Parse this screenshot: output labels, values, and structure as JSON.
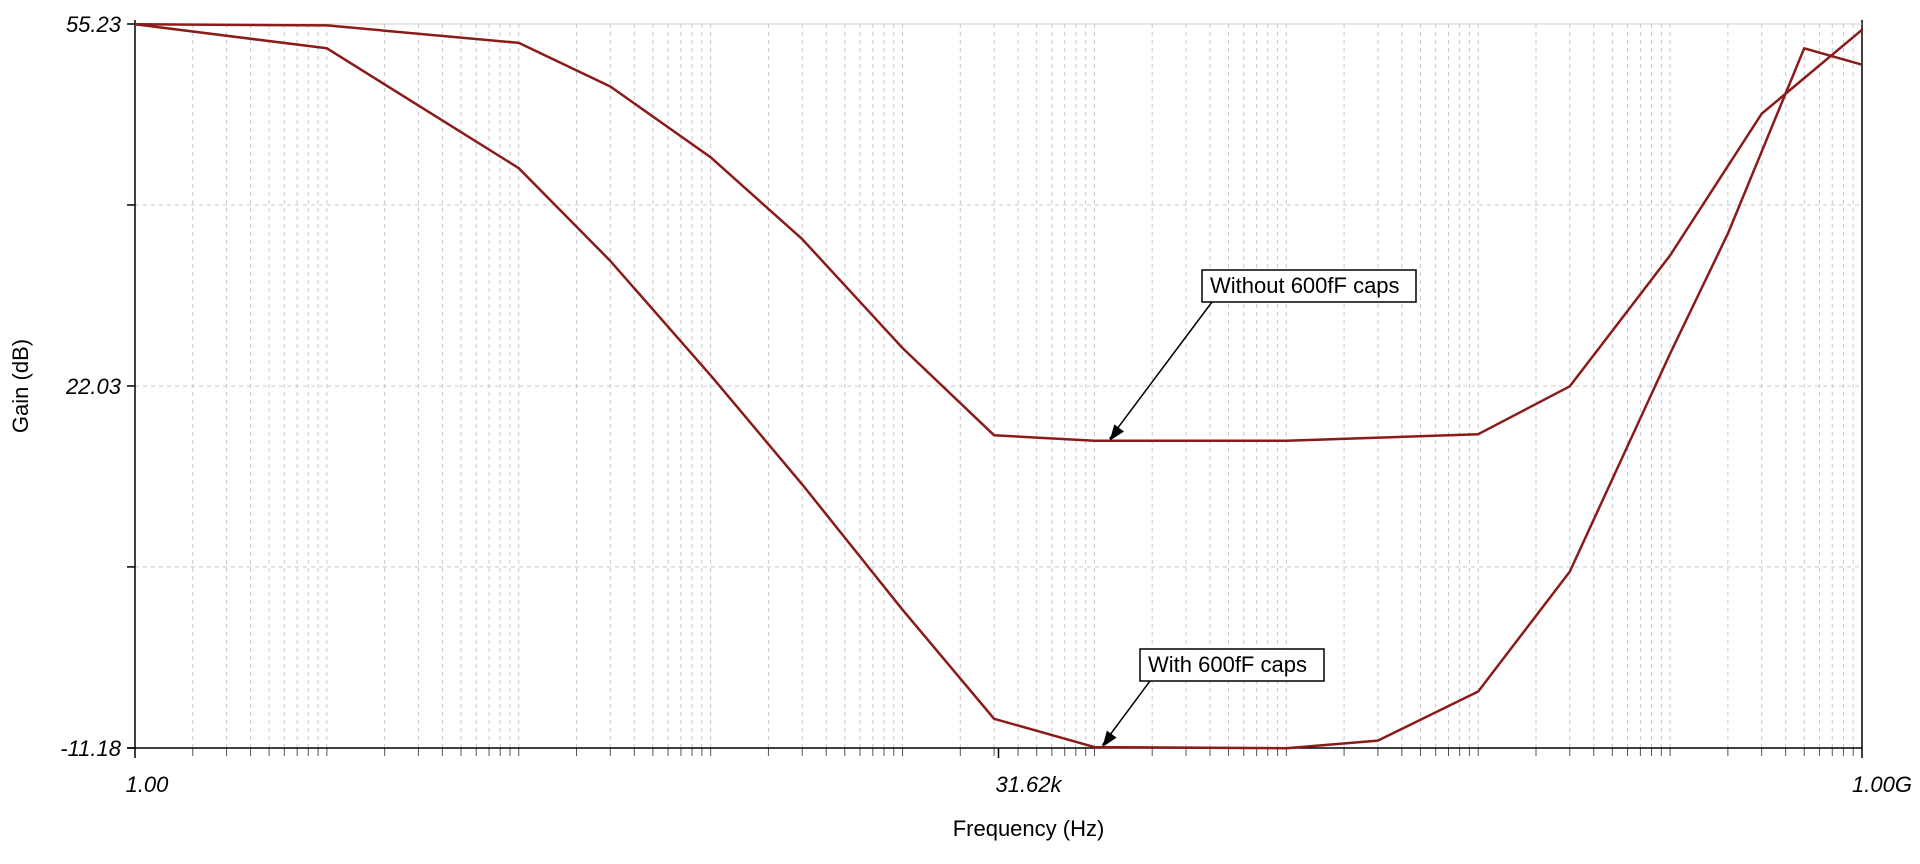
{
  "chart_data": {
    "type": "line",
    "xlabel": "Frequency (Hz)",
    "ylabel": "Gain (dB)",
    "x_scale": "log",
    "xlim": [
      1,
      1000000000
    ],
    "ylim": [
      -11.18,
      55.23
    ],
    "x_tick_labels": [
      "1.00",
      "31.62k",
      "1.00G"
    ],
    "y_tick_labels": [
      "55.23",
      "22.03",
      "-11.18"
    ],
    "y_minor_ticks": [
      38.63,
      5.43
    ],
    "grid": true,
    "line_color": "#8b1a1a",
    "series": [
      {
        "key": "without_caps",
        "x": [
          1,
          10,
          100,
          300,
          1000,
          3000,
          10000,
          30000,
          100000,
          1000000,
          10000000,
          30000000,
          100000000,
          300000000,
          1000000000
        ],
        "y": [
          55.2,
          55.1,
          53.5,
          49.5,
          43.0,
          35.5,
          25.5,
          17.5,
          17.0,
          17.0,
          17.6,
          22.0,
          34.0,
          47.0,
          54.7
        ]
      },
      {
        "key": "with_caps",
        "x": [
          1,
          10,
          100,
          300,
          1000,
          3000,
          10000,
          30000,
          100000,
          1000000,
          3000000,
          10000000,
          30000000,
          100000000,
          200000000,
          500000000,
          1000000000
        ],
        "y": [
          55.2,
          53.0,
          42.0,
          33.5,
          23.0,
          13.0,
          1.5,
          -8.5,
          -11.1,
          -11.2,
          -10.5,
          -6.0,
          5.0,
          25.0,
          36.0,
          53.0,
          51.5
        ]
      }
    ],
    "annotations": [
      {
        "text": "Without 600fF caps",
        "target_x": 120000,
        "target_y": 17.0
      },
      {
        "text": "With 600fF caps",
        "target_x": 110000,
        "target_y": -11.1
      }
    ]
  }
}
